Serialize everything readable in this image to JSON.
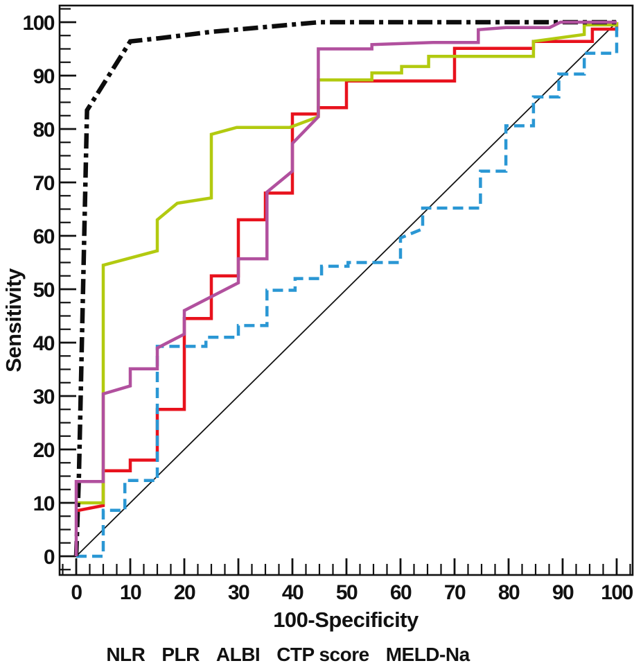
{
  "chart_data": {
    "type": "line",
    "subtype": "roc-curves",
    "title": "",
    "xlabel": "100-Specificity",
    "ylabel": "Sensitivity",
    "xlim": [
      0,
      100
    ],
    "ylim": [
      0,
      100
    ],
    "x_major_ticks": [
      0,
      10,
      20,
      30,
      40,
      50,
      60,
      70,
      80,
      90,
      100
    ],
    "y_major_ticks": [
      0,
      10,
      20,
      30,
      40,
      50,
      60,
      70,
      80,
      90,
      100
    ],
    "minor_tick_step": 2.5,
    "grid": false,
    "legend_position": "bottom",
    "axis_color": "#111111",
    "background": "#ffffff",
    "reference_line": {
      "label": "chance-diagonal",
      "color": "#111111",
      "width": 1.8,
      "dash": "solid",
      "points": [
        [
          0,
          0
        ],
        [
          100,
          100
        ]
      ]
    },
    "draw_order": [
      0,
      2,
      1,
      3,
      4
    ],
    "series": [
      {
        "name": "NLR",
        "color": "#e8121d",
        "dash": "solid",
        "width": 4.5,
        "points": [
          [
            0,
            8.5
          ],
          [
            5,
            9.5
          ],
          [
            5,
            16
          ],
          [
            10,
            16
          ],
          [
            10,
            18
          ],
          [
            15,
            18
          ],
          [
            15,
            27.5
          ],
          [
            20,
            27.5
          ],
          [
            20,
            44.5
          ],
          [
            25,
            44.5
          ],
          [
            25,
            52.5
          ],
          [
            30,
            52.5
          ],
          [
            30,
            63
          ],
          [
            35,
            63
          ],
          [
            35,
            68
          ],
          [
            40,
            68
          ],
          [
            40,
            82.8
          ],
          [
            44.8,
            82.8
          ],
          [
            44.8,
            84
          ],
          [
            50,
            84
          ],
          [
            50,
            89
          ],
          [
            70,
            89
          ],
          [
            70,
            95.1
          ],
          [
            84.6,
            95.1
          ],
          [
            84.6,
            96.4
          ],
          [
            95.5,
            96.4
          ],
          [
            95.5,
            98.7
          ],
          [
            100,
            98.7
          ],
          [
            100,
            100
          ]
        ]
      },
      {
        "name": "PLR",
        "color": "#2a97d4",
        "dash": "dashed",
        "width": 4.5,
        "points": [
          [
            0,
            0
          ],
          [
            5,
            0
          ],
          [
            5,
            8.6
          ],
          [
            9,
            8.6
          ],
          [
            9,
            14.2
          ],
          [
            15,
            14.2
          ],
          [
            15,
            39.3
          ],
          [
            24,
            39.3
          ],
          [
            24,
            41
          ],
          [
            30,
            41
          ],
          [
            30,
            43.2
          ],
          [
            35.3,
            43.2
          ],
          [
            35.3,
            49.8
          ],
          [
            40.5,
            49.8
          ],
          [
            40.5,
            52
          ],
          [
            45.4,
            52
          ],
          [
            45.4,
            54.3
          ],
          [
            50.3,
            54.3
          ],
          [
            50.3,
            55
          ],
          [
            60,
            55
          ],
          [
            60,
            59.6
          ],
          [
            64.1,
            61.3
          ],
          [
            64.1,
            65.2
          ],
          [
            74.8,
            65.2
          ],
          [
            74.8,
            72.1
          ],
          [
            79.5,
            72.1
          ],
          [
            79.5,
            80.6
          ],
          [
            84.6,
            80.6
          ],
          [
            84.6,
            86
          ],
          [
            89.3,
            86
          ],
          [
            89.3,
            90.3
          ],
          [
            94,
            90.3
          ],
          [
            94,
            94.2
          ],
          [
            100,
            94.2
          ],
          [
            100,
            100
          ]
        ]
      },
      {
        "name": "ALBI",
        "color": "#b2ca10",
        "dash": "solid",
        "width": 4.5,
        "points": [
          [
            0,
            10
          ],
          [
            5,
            10
          ],
          [
            5,
            54.5
          ],
          [
            15,
            57.2
          ],
          [
            15,
            63
          ],
          [
            18.7,
            66.1
          ],
          [
            25,
            67.1
          ],
          [
            25,
            79
          ],
          [
            29.7,
            80.3
          ],
          [
            39.5,
            80.3
          ],
          [
            44.8,
            82.3
          ],
          [
            44.8,
            89.2
          ],
          [
            54.7,
            89.2
          ],
          [
            54.7,
            90.5
          ],
          [
            60.2,
            90.5
          ],
          [
            60.2,
            91.7
          ],
          [
            65.2,
            91.7
          ],
          [
            65.2,
            93.6
          ],
          [
            84.6,
            93.6
          ],
          [
            84.6,
            96.4
          ],
          [
            94,
            97.7
          ],
          [
            94,
            99.5
          ],
          [
            100,
            99.5
          ],
          [
            100,
            100
          ]
        ]
      },
      {
        "name": "CTP score",
        "color": "#0d0d0d",
        "dash": "dashdot",
        "width": 6.5,
        "points": [
          [
            0,
            0
          ],
          [
            0.5,
            15
          ],
          [
            2,
            83.5
          ],
          [
            10,
            96.4
          ],
          [
            15.4,
            97
          ],
          [
            25,
            98.2
          ],
          [
            45,
            100
          ],
          [
            100,
            100
          ]
        ]
      },
      {
        "name": "MELD-Na",
        "color": "#b1509e",
        "dash": "solid",
        "width": 4.5,
        "points": [
          [
            0,
            0
          ],
          [
            0,
            14
          ],
          [
            5,
            14
          ],
          [
            5,
            30.4
          ],
          [
            10,
            31.9
          ],
          [
            10,
            35.1
          ],
          [
            15,
            35.1
          ],
          [
            15,
            39
          ],
          [
            20,
            41.6
          ],
          [
            20,
            46
          ],
          [
            30,
            51.2
          ],
          [
            30,
            55.7
          ],
          [
            35.3,
            55.7
          ],
          [
            35.3,
            68.2
          ],
          [
            40,
            72.1
          ],
          [
            40,
            77.3
          ],
          [
            44.8,
            82.3
          ],
          [
            44.8,
            95
          ],
          [
            54.7,
            95
          ],
          [
            54.7,
            95.8
          ],
          [
            66,
            96.2
          ],
          [
            74.4,
            96.2
          ],
          [
            74.4,
            98.6
          ],
          [
            79.5,
            99
          ],
          [
            87.6,
            99
          ],
          [
            89.6,
            100
          ],
          [
            100,
            100
          ]
        ]
      }
    ]
  }
}
